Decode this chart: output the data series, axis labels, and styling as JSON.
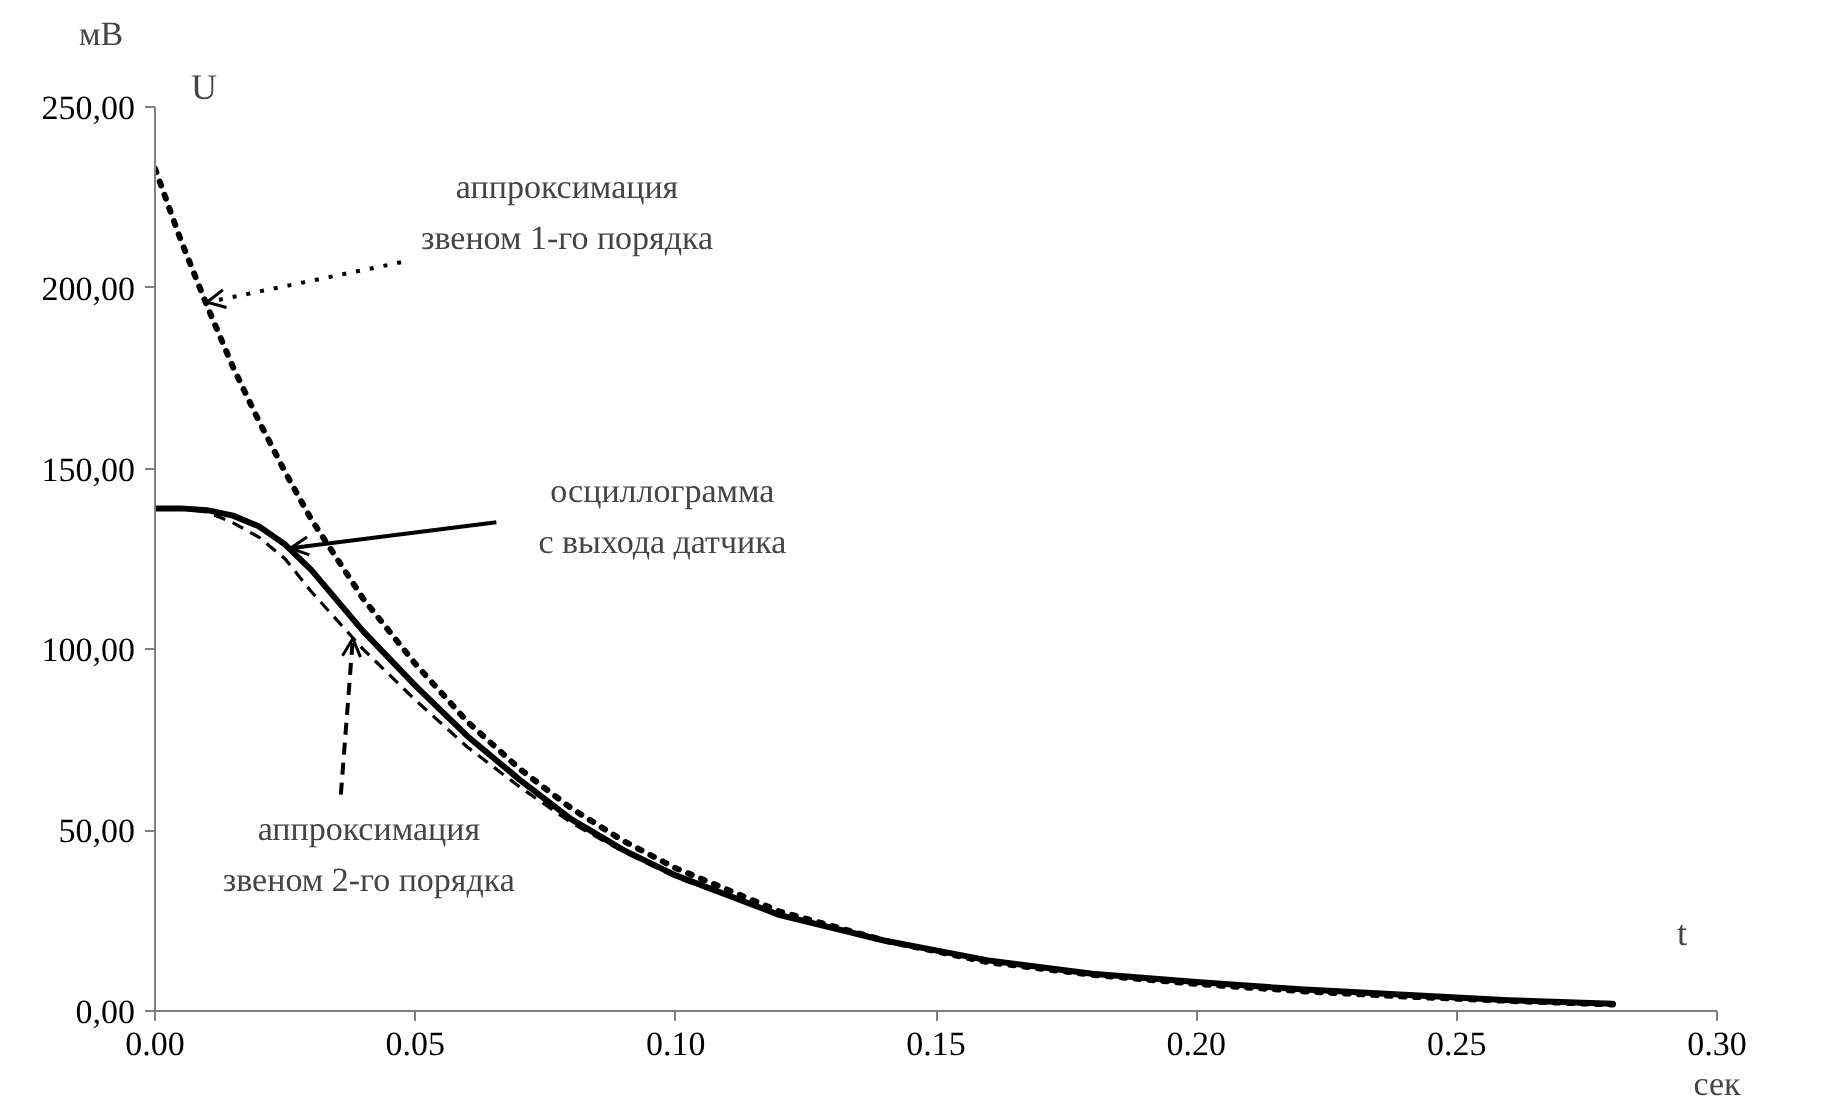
{
  "chart_data": {
    "type": "line",
    "xlabel": "t",
    "ylabel": "U",
    "x": [
      0,
      0.005,
      0.01,
      0.015,
      0.02,
      0.025,
      0.03,
      0.04,
      0.05,
      0.06,
      0.07,
      0.08,
      0.09,
      0.1,
      0.12,
      0.14,
      0.16,
      0.18,
      0.2,
      0.22,
      0.24,
      0.26,
      0.28
    ],
    "series": [
      {
        "color": "#000000",
        "line_style": "solid",
        "values": [
          139,
          139,
          138.5,
          137,
          134,
          129,
          122,
          105,
          90,
          76,
          64,
          53,
          44.5,
          37.5,
          26.5,
          19.5,
          14,
          10.3,
          8,
          6,
          4.5,
          3,
          2
        ]
      },
      {
        "color": "#000000",
        "line_style": "dotted",
        "values": [
          233,
          213,
          195,
          178,
          163,
          149,
          136,
          114,
          96,
          80,
          67,
          56,
          47,
          39.5,
          27.5,
          19.5,
          13.5,
          10,
          7.5,
          5.5,
          4,
          2.8,
          1.8
        ]
      },
      {
        "color": "#000000",
        "line_style": "dashed",
        "values": [
          139,
          139,
          138,
          135,
          131,
          125,
          116,
          100,
          86,
          73,
          62,
          52,
          44,
          37,
          26.5,
          19.5,
          14,
          10.3,
          8,
          6,
          4.5,
          3,
          2
        ]
      }
    ],
    "xlim": [
      0,
      0.3
    ],
    "ylim": [
      0,
      250
    ],
    "xticks": [
      {
        "value": 0,
        "label": "0.00"
      },
      {
        "value": 0.05,
        "label": "0.05"
      },
      {
        "value": 0.1,
        "label": "0.10"
      },
      {
        "value": 0.15,
        "label": "0.15"
      },
      {
        "value": 0.2,
        "label": "0.20"
      },
      {
        "value": 0.25,
        "label": "0.25"
      },
      {
        "value": 0.3,
        "label": "0.30"
      }
    ],
    "yticks": [
      {
        "value": 0,
        "label": "0,00"
      },
      {
        "value": 50,
        "label": "50,00"
      },
      {
        "value": 100,
        "label": "100,00"
      },
      {
        "value": 150,
        "label": "150,00"
      },
      {
        "value": 200,
        "label": "200,00"
      },
      {
        "value": 250,
        "label": "250,00"
      }
    ],
    "annotations": [
      {
        "text": "аппроксимация\nзвеном 1-го порядка",
        "x": 0.01,
        "y": 196
      },
      {
        "text": "осциллограмма\nс выхода датчика",
        "x": 0.026,
        "y": 128
      },
      {
        "text": "аппроксимация\nзвеном 2-го порядка",
        "x": 0.038,
        "y": 103
      },
      "мВ",
      "сек"
    ],
    "grid": false,
    "marker": "none"
  }
}
